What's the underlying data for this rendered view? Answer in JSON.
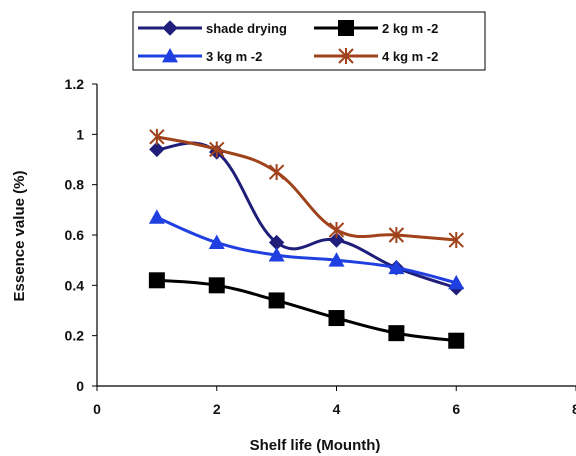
{
  "chart_data": {
    "type": "line",
    "xlabel": "Shelf life (Mounth)",
    "ylabel": "Essence value (%)",
    "xlim": [
      0,
      8
    ],
    "ylim": [
      0,
      1.2
    ],
    "x_ticks": [
      0,
      2,
      4,
      6,
      8
    ],
    "x_tick_labels": [
      "0",
      "2",
      "4",
      "6",
      "8"
    ],
    "y_ticks": [
      0,
      0.2,
      0.4,
      0.6,
      0.8,
      1,
      1.2
    ],
    "y_tick_labels": [
      "0",
      "0.2",
      "0.4",
      "0.6",
      "0.8",
      "1",
      "1.2"
    ],
    "grid": false,
    "legend_position": "top",
    "x": [
      1,
      2,
      3,
      4,
      5,
      6
    ],
    "series": [
      {
        "name": "shade drying",
        "values": [
          0.94,
          0.93,
          0.57,
          0.58,
          0.47,
          0.39
        ],
        "color": "#1f1f7a",
        "marker": "diamond"
      },
      {
        "name": "2 kg m -2",
        "values": [
          0.42,
          0.4,
          0.34,
          0.27,
          0.21,
          0.18
        ],
        "color": "#000000",
        "marker": "square"
      },
      {
        "name": "3 kg m -2",
        "values": [
          0.67,
          0.57,
          0.52,
          0.5,
          0.47,
          0.41
        ],
        "color": "#1f3fe0",
        "marker": "triangle"
      },
      {
        "name": "4 kg m -2",
        "values": [
          0.99,
          0.94,
          0.85,
          0.62,
          0.6,
          0.58
        ],
        "color": "#a0421b",
        "marker": "star"
      }
    ]
  }
}
